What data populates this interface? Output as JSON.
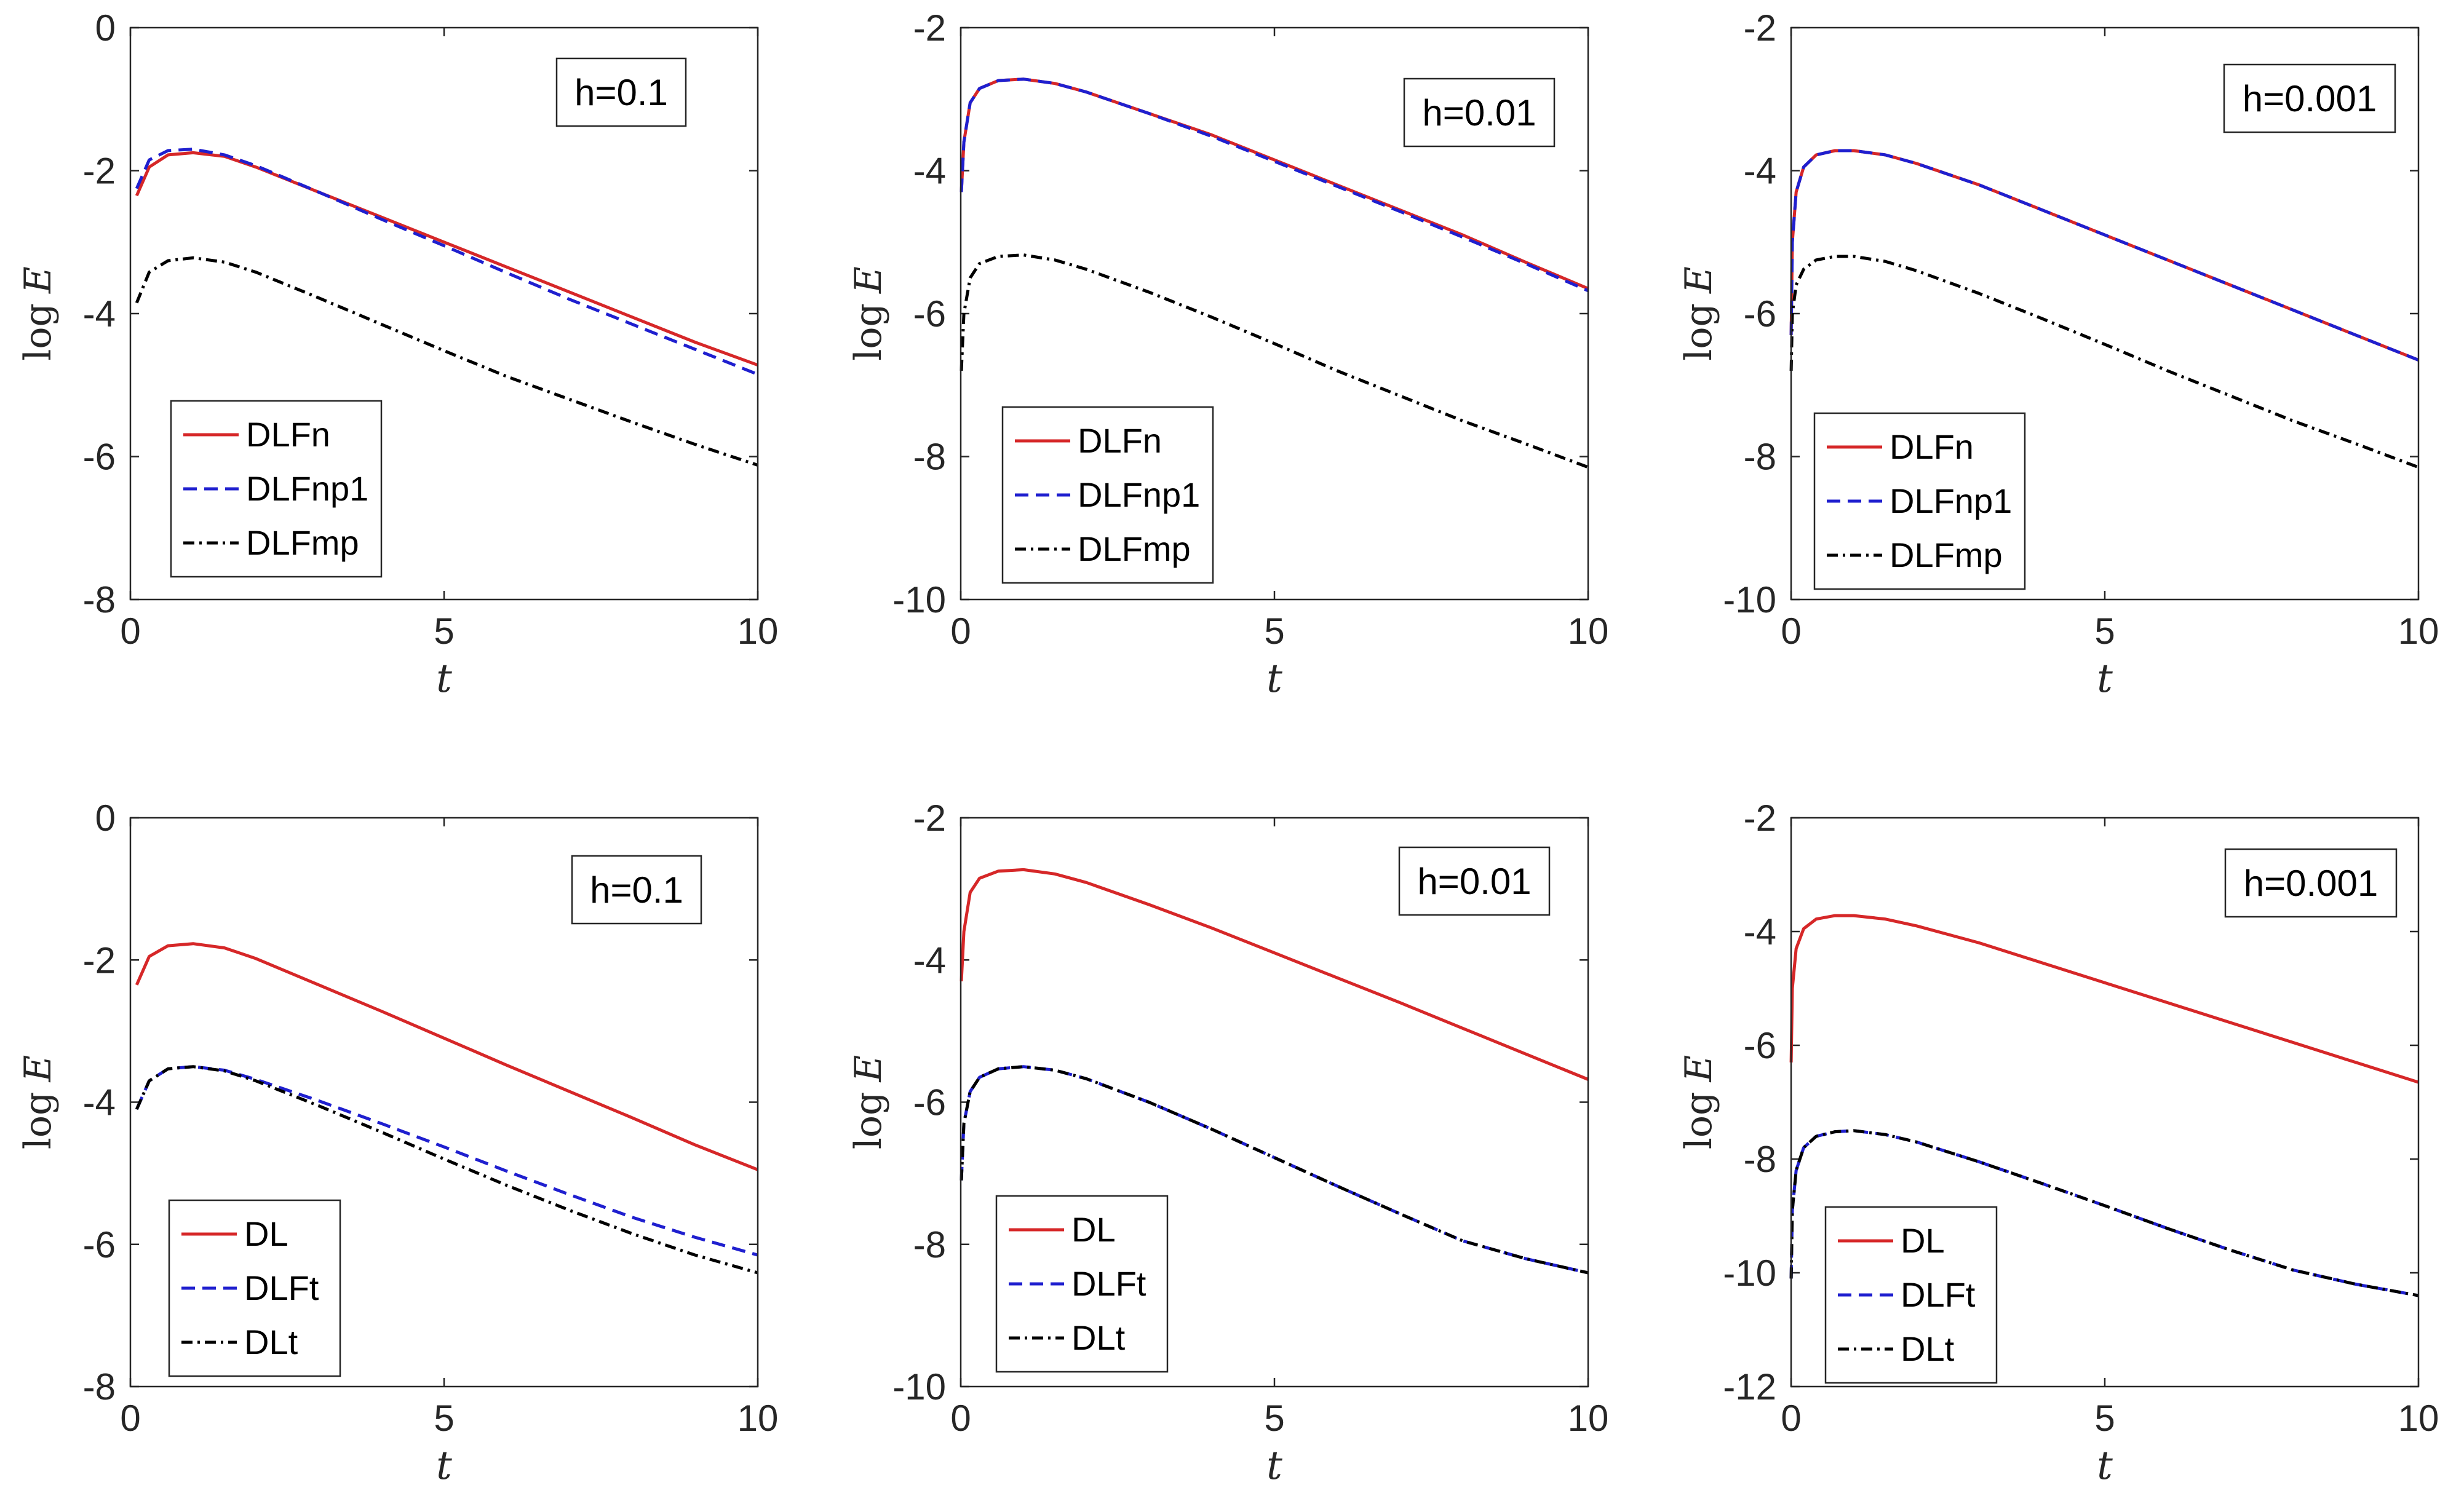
{
  "chart_data": [
    {
      "type": "line",
      "ylabel_func": "log",
      "ylabel_var": "E",
      "xlabel": "t",
      "xlim": [
        0,
        10
      ],
      "ylim": [
        -8,
        0
      ],
      "xticks": [
        0,
        5,
        10
      ],
      "yticks": [
        -8,
        -6,
        -4,
        -2,
        0
      ],
      "annotation": "h=0.1",
      "legend_position": "lower-left",
      "series": [
        {
          "name": "DLFn",
          "color": "#d62728",
          "style": "solid",
          "x": [
            0.1,
            0.3,
            0.6,
            1,
            1.5,
            2,
            3,
            4,
            5,
            6,
            7,
            8,
            9,
            10
          ],
          "y": [
            -2.35,
            -1.95,
            -1.78,
            -1.75,
            -1.8,
            -1.95,
            -2.3,
            -2.65,
            -3.0,
            -3.35,
            -3.7,
            -4.05,
            -4.4,
            -4.72
          ]
        },
        {
          "name": "DLFnp1",
          "color": "#1f1fcf",
          "style": "dashed",
          "x": [
            0.1,
            0.3,
            0.6,
            1,
            1.5,
            2,
            3,
            4,
            5,
            6,
            7,
            8,
            9,
            10
          ],
          "y": [
            -2.25,
            -1.85,
            -1.72,
            -1.7,
            -1.78,
            -1.93,
            -2.3,
            -2.68,
            -3.05,
            -3.43,
            -3.8,
            -4.15,
            -4.5,
            -4.85
          ]
        },
        {
          "name": "DLFmp",
          "color": "#000000",
          "style": "dashdot",
          "x": [
            0.1,
            0.3,
            0.6,
            1,
            1.5,
            2,
            3,
            4,
            5,
            6,
            7,
            8,
            9,
            10
          ],
          "y": [
            -3.85,
            -3.42,
            -3.26,
            -3.22,
            -3.28,
            -3.42,
            -3.78,
            -4.15,
            -4.52,
            -4.88,
            -5.2,
            -5.52,
            -5.83,
            -6.12
          ]
        }
      ]
    },
    {
      "type": "line",
      "ylabel_func": "log",
      "ylabel_var": "E",
      "xlabel": "t",
      "xlim": [
        0,
        10
      ],
      "ylim": [
        -10,
        -2
      ],
      "xticks": [
        0,
        5,
        10
      ],
      "yticks": [
        -10,
        -8,
        -6,
        -4,
        -2
      ],
      "annotation": "h=0.01",
      "legend_position": "lower-left",
      "series": [
        {
          "name": "DLFn",
          "color": "#d62728",
          "style": "solid",
          "x": [
            0.01,
            0.05,
            0.15,
            0.3,
            0.6,
            1,
            1.5,
            2,
            3,
            4,
            5,
            6,
            7,
            8,
            9,
            10
          ],
          "y": [
            -4.3,
            -3.6,
            -3.05,
            -2.85,
            -2.74,
            -2.72,
            -2.78,
            -2.9,
            -3.2,
            -3.5,
            -3.85,
            -4.2,
            -4.55,
            -4.9,
            -5.28,
            -5.65
          ]
        },
        {
          "name": "DLFnp1",
          "color": "#1f1fcf",
          "style": "dashed",
          "x": [
            0.01,
            0.05,
            0.15,
            0.3,
            0.6,
            1,
            1.5,
            2,
            3,
            4,
            5,
            6,
            7,
            8,
            9,
            10
          ],
          "y": [
            -4.3,
            -3.6,
            -3.05,
            -2.85,
            -2.74,
            -2.72,
            -2.78,
            -2.9,
            -3.2,
            -3.52,
            -3.87,
            -4.22,
            -4.57,
            -4.93,
            -5.3,
            -5.68
          ]
        },
        {
          "name": "DLFmp",
          "color": "#000000",
          "style": "dashdot",
          "x": [
            0.01,
            0.05,
            0.15,
            0.3,
            0.6,
            1,
            1.5,
            2,
            3,
            4,
            5,
            6,
            7,
            8,
            9,
            10
          ],
          "y": [
            -6.8,
            -6.0,
            -5.5,
            -5.3,
            -5.2,
            -5.18,
            -5.25,
            -5.38,
            -5.7,
            -6.05,
            -6.42,
            -6.8,
            -7.15,
            -7.5,
            -7.82,
            -8.15
          ]
        }
      ]
    },
    {
      "type": "line",
      "ylabel_func": "log",
      "ylabel_var": "E",
      "xlabel": "t",
      "xlim": [
        0,
        10
      ],
      "ylim": [
        -10,
        -2
      ],
      "xticks": [
        0,
        5,
        10
      ],
      "yticks": [
        -10,
        -8,
        -6,
        -4,
        -2
      ],
      "annotation": "h=0.001",
      "legend_position": "lower-left",
      "series": [
        {
          "name": "DLFn",
          "color": "#d62728",
          "style": "solid",
          "x": [
            0.001,
            0.02,
            0.08,
            0.2,
            0.4,
            0.7,
            1,
            1.5,
            2,
            3,
            4,
            5,
            6,
            7,
            8,
            9,
            10
          ],
          "y": [
            -6.3,
            -5.0,
            -4.3,
            -3.95,
            -3.78,
            -3.72,
            -3.72,
            -3.78,
            -3.9,
            -4.2,
            -4.55,
            -4.9,
            -5.25,
            -5.6,
            -5.95,
            -6.3,
            -6.65
          ]
        },
        {
          "name": "DLFnp1",
          "color": "#1f1fcf",
          "style": "dashed",
          "x": [
            0.001,
            0.02,
            0.08,
            0.2,
            0.4,
            0.7,
            1,
            1.5,
            2,
            3,
            4,
            5,
            6,
            7,
            8,
            9,
            10
          ],
          "y": [
            -6.3,
            -5.0,
            -4.3,
            -3.95,
            -3.78,
            -3.72,
            -3.72,
            -3.78,
            -3.9,
            -4.2,
            -4.55,
            -4.9,
            -5.25,
            -5.6,
            -5.95,
            -6.3,
            -6.65
          ]
        },
        {
          "name": "DLFmp",
          "color": "#000000",
          "style": "dashdot",
          "x": [
            0.001,
            0.02,
            0.08,
            0.2,
            0.4,
            0.7,
            1,
            1.5,
            2,
            3,
            4,
            5,
            6,
            7,
            8,
            9,
            10
          ],
          "y": [
            -6.8,
            -6.0,
            -5.6,
            -5.38,
            -5.25,
            -5.2,
            -5.2,
            -5.27,
            -5.4,
            -5.72,
            -6.07,
            -6.43,
            -6.8,
            -7.15,
            -7.5,
            -7.82,
            -8.15
          ]
        }
      ]
    },
    {
      "type": "line",
      "ylabel_func": "log",
      "ylabel_var": "E",
      "xlabel": "t",
      "xlim": [
        0,
        10
      ],
      "ylim": [
        -8,
        0
      ],
      "xticks": [
        0,
        5,
        10
      ],
      "yticks": [
        -8,
        -6,
        -4,
        -2,
        0
      ],
      "annotation": "h=0.1",
      "legend_position": "lower-left",
      "series": [
        {
          "name": "DL",
          "color": "#d62728",
          "style": "solid",
          "x": [
            0.1,
            0.3,
            0.6,
            1,
            1.5,
            2,
            3,
            4,
            5,
            6,
            7,
            8,
            9,
            10
          ],
          "y": [
            -2.35,
            -1.95,
            -1.8,
            -1.77,
            -1.83,
            -1.98,
            -2.35,
            -2.72,
            -3.1,
            -3.48,
            -3.85,
            -4.22,
            -4.6,
            -4.95
          ]
        },
        {
          "name": "DLFt",
          "color": "#1f1fcf",
          "style": "dashed",
          "x": [
            0.1,
            0.3,
            0.6,
            1,
            1.5,
            2,
            3,
            4,
            5,
            6,
            7,
            8,
            9,
            10
          ],
          "y": [
            -4.1,
            -3.7,
            -3.53,
            -3.5,
            -3.55,
            -3.68,
            -3.98,
            -4.3,
            -4.63,
            -4.97,
            -5.3,
            -5.62,
            -5.9,
            -6.15
          ]
        },
        {
          "name": "DLt",
          "color": "#000000",
          "style": "dashdot",
          "x": [
            0.1,
            0.3,
            0.6,
            1,
            1.5,
            2,
            3,
            4,
            5,
            6,
            7,
            8,
            9,
            10
          ],
          "y": [
            -4.1,
            -3.7,
            -3.53,
            -3.5,
            -3.56,
            -3.7,
            -4.05,
            -4.42,
            -4.8,
            -5.17,
            -5.52,
            -5.85,
            -6.15,
            -6.4
          ]
        }
      ]
    },
    {
      "type": "line",
      "ylabel_func": "log",
      "ylabel_var": "E",
      "xlabel": "t",
      "xlim": [
        0,
        10
      ],
      "ylim": [
        -10,
        -2
      ],
      "xticks": [
        0,
        5,
        10
      ],
      "yticks": [
        -10,
        -8,
        -6,
        -4,
        -2
      ],
      "annotation": "h=0.01",
      "legend_position": "lower-left",
      "series": [
        {
          "name": "DL",
          "color": "#d62728",
          "style": "solid",
          "x": [
            0.01,
            0.05,
            0.15,
            0.3,
            0.6,
            1,
            1.5,
            2,
            3,
            4,
            5,
            6,
            7,
            8,
            9,
            10
          ],
          "y": [
            -4.3,
            -3.6,
            -3.05,
            -2.85,
            -2.75,
            -2.73,
            -2.79,
            -2.91,
            -3.22,
            -3.55,
            -3.9,
            -4.25,
            -4.6,
            -4.96,
            -5.32,
            -5.68
          ]
        },
        {
          "name": "DLFt",
          "color": "#1f1fcf",
          "style": "dashed",
          "x": [
            0.01,
            0.05,
            0.15,
            0.3,
            0.6,
            1,
            1.5,
            2,
            3,
            4,
            5,
            6,
            7,
            8,
            9,
            10
          ],
          "y": [
            -7.1,
            -6.3,
            -5.85,
            -5.65,
            -5.53,
            -5.5,
            -5.55,
            -5.67,
            -6.0,
            -6.38,
            -6.78,
            -7.18,
            -7.57,
            -7.95,
            -8.2,
            -8.4
          ]
        },
        {
          "name": "DLt",
          "color": "#000000",
          "style": "dashdot",
          "x": [
            0.01,
            0.05,
            0.15,
            0.3,
            0.6,
            1,
            1.5,
            2,
            3,
            4,
            5,
            6,
            7,
            8,
            9,
            10
          ],
          "y": [
            -7.1,
            -6.3,
            -5.85,
            -5.65,
            -5.53,
            -5.5,
            -5.55,
            -5.67,
            -6.0,
            -6.38,
            -6.78,
            -7.18,
            -7.57,
            -7.95,
            -8.2,
            -8.4
          ]
        }
      ]
    },
    {
      "type": "line",
      "ylabel_func": "log",
      "ylabel_var": "E",
      "xlabel": "t",
      "xlim": [
        0,
        10
      ],
      "ylim": [
        -12,
        -2
      ],
      "xticks": [
        0,
        5,
        10
      ],
      "yticks": [
        -12,
        -10,
        -8,
        -6,
        -4,
        -2
      ],
      "annotation": "h=0.001",
      "legend_position": "lower-left",
      "series": [
        {
          "name": "DL",
          "color": "#d62728",
          "style": "solid",
          "x": [
            0.001,
            0.02,
            0.08,
            0.2,
            0.4,
            0.7,
            1,
            1.5,
            2,
            3,
            4,
            5,
            6,
            7,
            8,
            9,
            10
          ],
          "y": [
            -6.3,
            -5.0,
            -4.3,
            -3.95,
            -3.78,
            -3.72,
            -3.72,
            -3.78,
            -3.9,
            -4.2,
            -4.55,
            -4.9,
            -5.25,
            -5.6,
            -5.95,
            -6.3,
            -6.65
          ]
        },
        {
          "name": "DLFt",
          "color": "#1f1fcf",
          "style": "dashed",
          "x": [
            0.001,
            0.02,
            0.08,
            0.2,
            0.4,
            0.7,
            1,
            1.5,
            2,
            3,
            4,
            5,
            6,
            7,
            8,
            9,
            10
          ],
          "y": [
            -10.1,
            -8.9,
            -8.2,
            -7.8,
            -7.6,
            -7.52,
            -7.5,
            -7.57,
            -7.7,
            -8.05,
            -8.43,
            -8.82,
            -9.22,
            -9.6,
            -9.95,
            -10.2,
            -10.4
          ]
        },
        {
          "name": "DLt",
          "color": "#000000",
          "style": "dashdot",
          "x": [
            0.001,
            0.02,
            0.08,
            0.2,
            0.4,
            0.7,
            1,
            1.5,
            2,
            3,
            4,
            5,
            6,
            7,
            8,
            9,
            10
          ],
          "y": [
            -10.1,
            -8.9,
            -8.2,
            -7.8,
            -7.6,
            -7.52,
            -7.5,
            -7.57,
            -7.7,
            -8.05,
            -8.43,
            -8.82,
            -9.22,
            -9.6,
            -9.95,
            -10.2,
            -10.4
          ]
        }
      ]
    }
  ]
}
